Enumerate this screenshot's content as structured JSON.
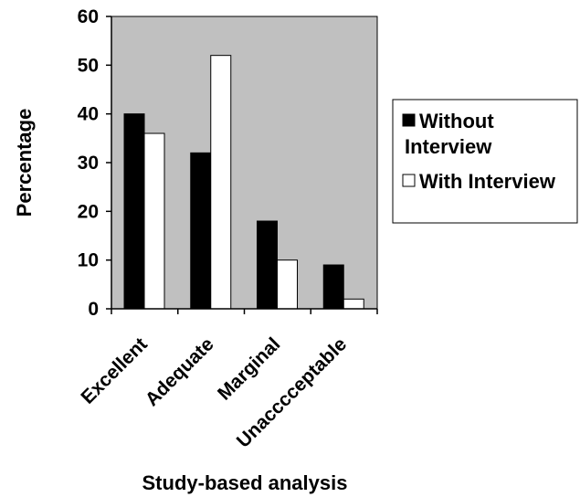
{
  "chart_data": {
    "type": "bar",
    "title": "",
    "xlabel": "Study-based analysis",
    "ylabel": "Percentage",
    "ylim": [
      0,
      60
    ],
    "yticks": [
      0,
      10,
      20,
      30,
      40,
      50,
      60
    ],
    "categories": [
      "Excellent",
      "Adequate",
      "Marginal",
      "Unacccceptable"
    ],
    "series": [
      {
        "name": "Without Interview",
        "values": [
          40,
          32,
          18,
          9
        ],
        "color": "#000000"
      },
      {
        "name": "With Interview",
        "values": [
          36,
          52,
          10,
          2
        ],
        "color": "#ffffff"
      }
    ],
    "plot_background": "#c0c0c0",
    "grid": false,
    "legend_position": "right"
  }
}
